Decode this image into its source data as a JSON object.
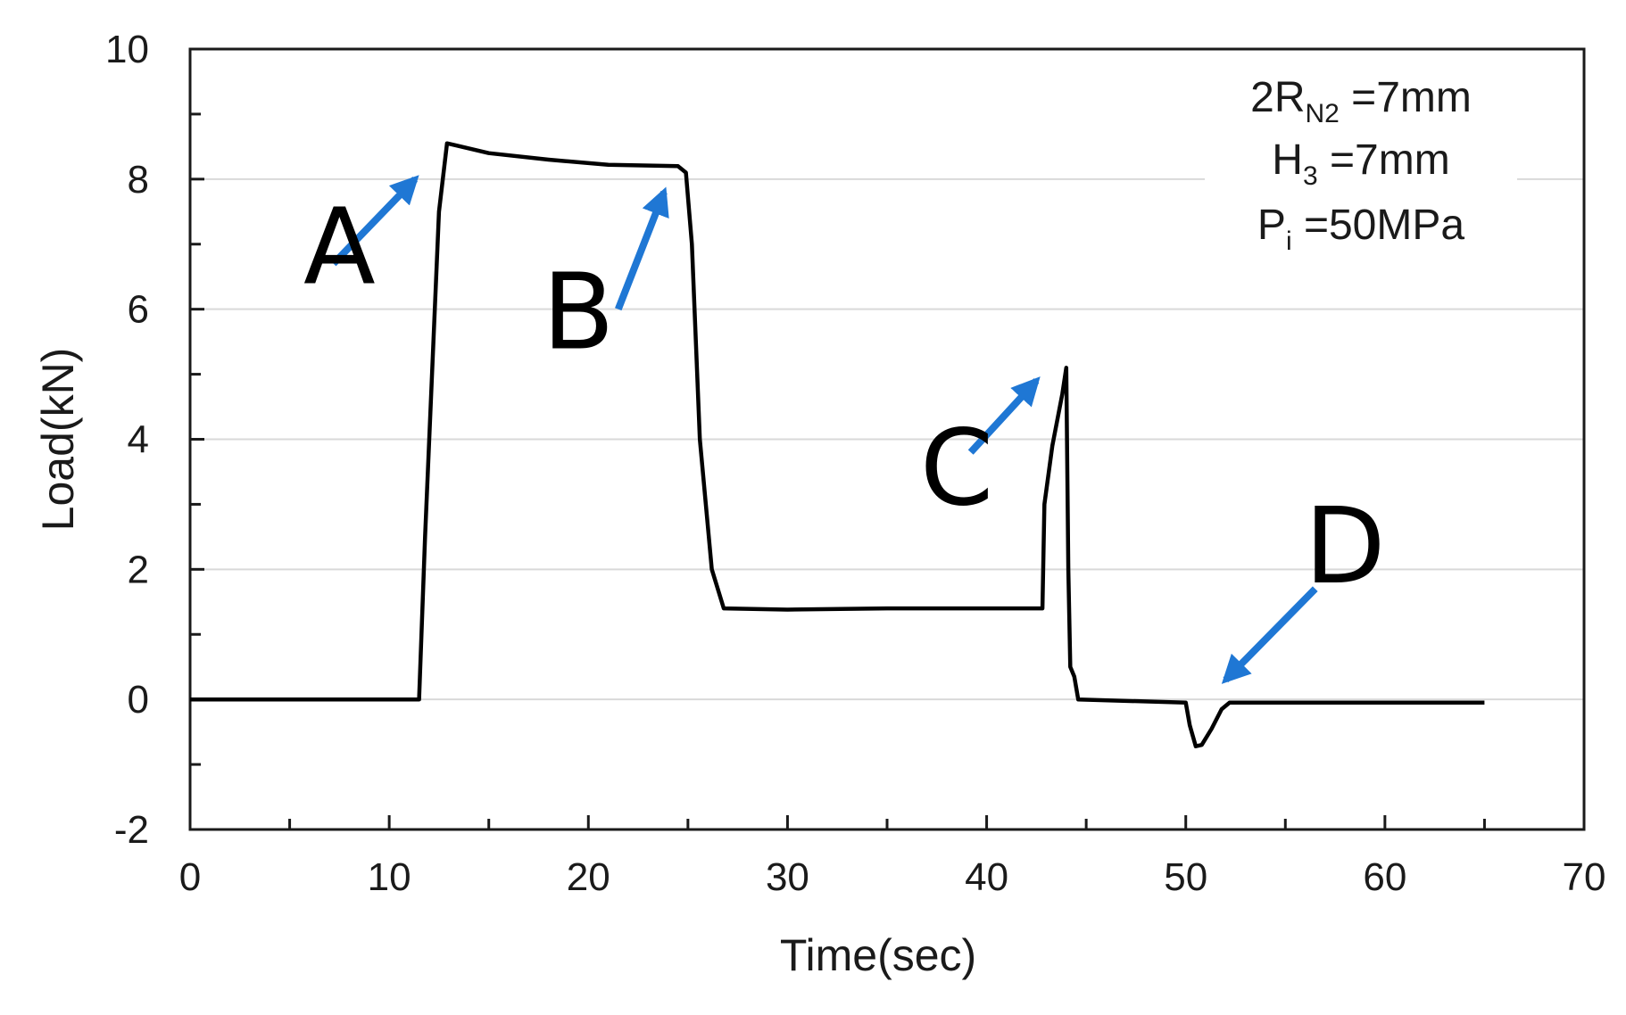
{
  "chart_data": {
    "type": "line",
    "title": "",
    "xlabel": "Time(sec)",
    "ylabel": "Load(kN)",
    "xlim": [
      0,
      70
    ],
    "ylim": [
      -2,
      10
    ],
    "x_ticks": [
      0,
      10,
      20,
      30,
      40,
      50,
      60,
      70
    ],
    "y_ticks": [
      -2,
      0,
      2,
      4,
      6,
      8,
      10
    ],
    "x_tick_labels": [
      "0",
      "10",
      "20",
      "30",
      "40",
      "50",
      "60",
      "70"
    ],
    "y_tick_labels": [
      "-2",
      "0",
      "2",
      "4",
      "6",
      "8",
      "10"
    ],
    "grid": "horizontal",
    "line_color": "#000000",
    "arrow_color": "#1f77d4",
    "series": [
      {
        "name": "Load",
        "x": [
          0,
          5,
          11.5,
          11.8,
          12.5,
          12.9,
          15,
          18,
          21,
          24.5,
          24.9,
          25.2,
          25.6,
          26.2,
          26.8,
          30,
          35,
          40,
          42.8,
          42.9,
          43.3,
          43.8,
          44.0,
          44.1,
          44.2,
          44.4,
          44.6,
          50,
          50.2,
          50.5,
          50.8,
          51.3,
          51.8,
          52.2,
          55,
          60,
          65
        ],
        "y": [
          0,
          0,
          0,
          2.5,
          7.5,
          8.55,
          8.4,
          8.3,
          8.22,
          8.2,
          8.1,
          7.0,
          4.0,
          2.0,
          1.4,
          1.38,
          1.4,
          1.4,
          1.4,
          3.0,
          3.9,
          4.7,
          5.1,
          2.0,
          0.5,
          0.35,
          0.0,
          -0.05,
          -0.4,
          -0.72,
          -0.7,
          -0.45,
          -0.15,
          -0.05,
          -0.05,
          -0.05,
          -0.05
        ]
      }
    ],
    "annotations": {
      "conditions": [
        {
          "main": "2R",
          "sub": "N2",
          "rest": " =7mm"
        },
        {
          "main": "H",
          "sub": "3",
          "rest": " =7mm"
        },
        {
          "main": "P",
          "sub": "i",
          "rest": " =50MPa"
        }
      ],
      "markers": [
        {
          "label": "A",
          "text_x": 7.5,
          "text_y": 6.4,
          "arrow_from": [
            7.2,
            6.7
          ],
          "arrow_to": [
            11.3,
            8.0
          ]
        },
        {
          "label": "B",
          "text_x": 19.5,
          "text_y": 5.4,
          "arrow_from": [
            21.5,
            6.0
          ],
          "arrow_to": [
            23.8,
            7.8
          ]
        },
        {
          "label": "C",
          "text_x": 38.5,
          "text_y": 3.0,
          "arrow_from": [
            39.2,
            3.8
          ],
          "arrow_to": [
            42.5,
            4.9
          ]
        },
        {
          "label": "D",
          "text_x": 58.0,
          "text_y": 1.8,
          "arrow_from": [
            56.5,
            1.7
          ],
          "arrow_to": [
            52.0,
            0.3
          ]
        }
      ]
    }
  }
}
